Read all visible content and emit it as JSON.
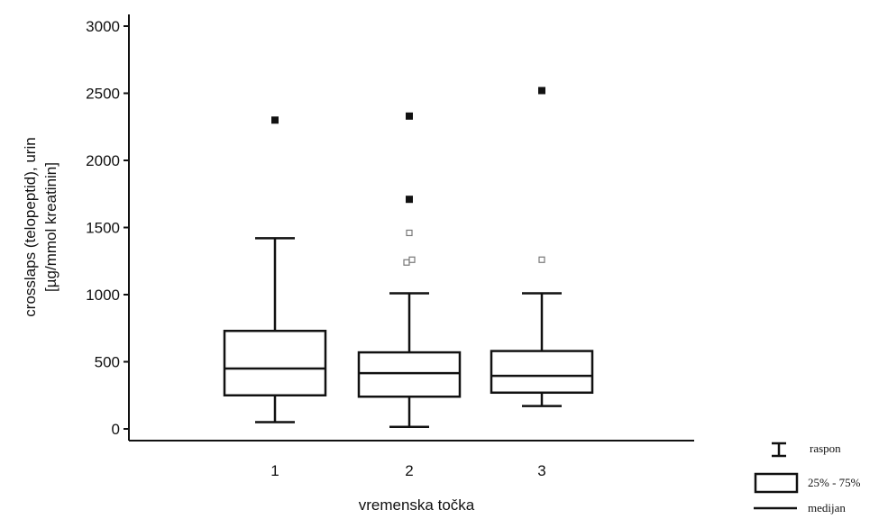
{
  "chart_data": {
    "type": "box",
    "title": "",
    "xlabel": "vremenska točka",
    "ylabel": [
      "crosslaps (telopeptid), urin",
      "[µg/mmol kreatinin]"
    ],
    "ylim": [
      0,
      3000
    ],
    "yticks": [
      0,
      500,
      1000,
      1500,
      2000,
      2500,
      3000
    ],
    "grid": false,
    "categories": [
      "1",
      "2",
      "3"
    ],
    "boxes": [
      {
        "category": "1",
        "whisker_low": 50,
        "q1": 250,
        "median": 450,
        "q3": 730,
        "whisker_high": 1420,
        "outliers": [],
        "extremes": [
          2300
        ]
      },
      {
        "category": "2",
        "whisker_low": 15,
        "q1": 240,
        "median": 415,
        "q3": 570,
        "whisker_high": 1010,
        "outliers": [
          1240,
          1260,
          1460
        ],
        "extremes": [
          1710,
          2330
        ]
      },
      {
        "category": "3",
        "whisker_low": 170,
        "q1": 270,
        "median": 395,
        "q3": 580,
        "whisker_high": 1010,
        "outliers": [
          1260
        ],
        "extremes": [
          2520
        ]
      }
    ],
    "legend": {
      "position": "bottom-right",
      "entries": [
        {
          "symbol": "range",
          "label": "raspon"
        },
        {
          "symbol": "box",
          "label": "25% - 75%"
        },
        {
          "symbol": "line",
          "label": "medijan"
        }
      ]
    }
  }
}
